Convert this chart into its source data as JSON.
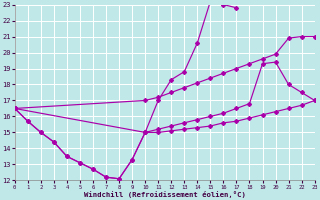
{
  "xlabel": "Windchill (Refroidissement éolien,°C)",
  "bg_color": "#c0e8e8",
  "grid_color": "#a8d8d8",
  "line_color": "#aa00aa",
  "xlim": [
    0,
    23
  ],
  "ylim": [
    12,
    23
  ],
  "xticks": [
    0,
    1,
    2,
    3,
    4,
    5,
    6,
    7,
    8,
    9,
    10,
    11,
    12,
    13,
    14,
    15,
    16,
    17,
    18,
    19,
    20,
    21,
    22,
    23
  ],
  "yticks": [
    12,
    13,
    14,
    15,
    16,
    17,
    18,
    19,
    20,
    21,
    22,
    23
  ],
  "s1_x": [
    0,
    1,
    2,
    3,
    4,
    5,
    6,
    7,
    8,
    9,
    10,
    11,
    12,
    13,
    14,
    15,
    16,
    17,
    18,
    19,
    20,
    21,
    22,
    23
  ],
  "s1_y": [
    16.5,
    15.7,
    15.0,
    14.4,
    13.5,
    13.1,
    12.7,
    12.2,
    12.1,
    13.3,
    15.0,
    15.0,
    15.1,
    15.2,
    15.3,
    15.4,
    15.6,
    15.7,
    15.9,
    16.1,
    16.3,
    16.5,
    16.7,
    17.0
  ],
  "s2_x": [
    0,
    1,
    2,
    3,
    4,
    5,
    6,
    7,
    8,
    9,
    10,
    11,
    12,
    13,
    14,
    15,
    16,
    17
  ],
  "s2_y": [
    16.5,
    15.7,
    15.0,
    14.4,
    13.5,
    13.1,
    12.7,
    12.2,
    12.1,
    13.3,
    15.0,
    17.0,
    18.3,
    18.8,
    20.6,
    23.2,
    23.0,
    22.8
  ],
  "s3_x": [
    0,
    10,
    11,
    12,
    13,
    14,
    15,
    16,
    17,
    18,
    19,
    20,
    21,
    22,
    23
  ],
  "s3_y": [
    16.5,
    17.0,
    17.2,
    17.5,
    17.8,
    18.1,
    18.4,
    18.7,
    19.0,
    19.3,
    19.6,
    19.9,
    20.9,
    21.0,
    21.0
  ],
  "s4_x": [
    0,
    10,
    11,
    12,
    13,
    14,
    15,
    16,
    17,
    18,
    19,
    20,
    21,
    22,
    23
  ],
  "s4_y": [
    16.5,
    15.0,
    15.2,
    15.4,
    15.6,
    15.8,
    16.0,
    16.2,
    16.5,
    16.8,
    19.3,
    19.4,
    18.0,
    17.5,
    17.0
  ]
}
